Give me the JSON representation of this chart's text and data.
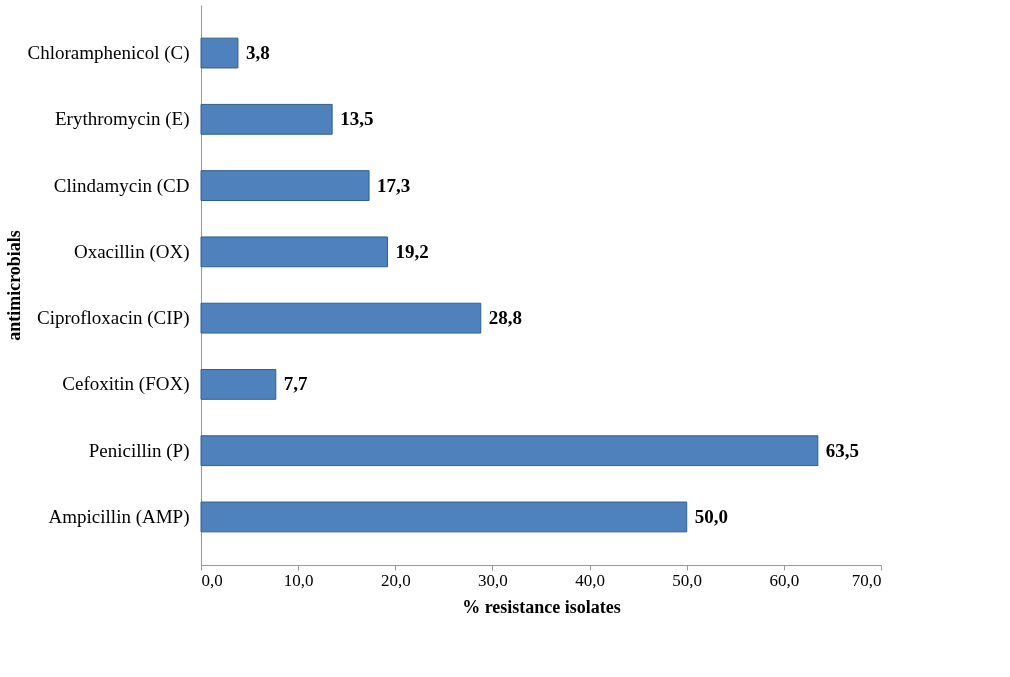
{
  "chart_data": {
    "type": "bar",
    "orientation": "horizontal",
    "xlabel": "% resistance isolates",
    "ylabel": "antimicrobials",
    "categories": [
      "Chloramphenicol (C)",
      "Erythromycin (E)",
      "Clindamycin (CD",
      "Oxacillin (OX)",
      "Ciprofloxacin (CIP)",
      "Cefoxitin (FOX)",
      "Penicillin (P)",
      "Ampicillin (AMP)"
    ],
    "values": [
      3.8,
      13.5,
      17.3,
      19.2,
      28.8,
      7.7,
      63.5,
      50.0
    ],
    "value_labels": [
      "3,8",
      "13,5",
      "17,3",
      "19,2",
      "28,8",
      "7,7",
      "63,5",
      "50,0"
    ],
    "color": "#4f81bd",
    "xlim": [
      0,
      70
    ],
    "xticks": [
      {
        "value": 0,
        "label": "0,0"
      },
      {
        "value": 10,
        "label": "10,0"
      },
      {
        "value": 20,
        "label": "20,0"
      },
      {
        "value": 30,
        "label": "30,0"
      },
      {
        "value": 40,
        "label": "40,0"
      },
      {
        "value": 50,
        "label": "50,0"
      },
      {
        "value": 60,
        "label": "60,0"
      },
      {
        "value": 70,
        "label": "70,0"
      }
    ],
    "grid": false
  }
}
